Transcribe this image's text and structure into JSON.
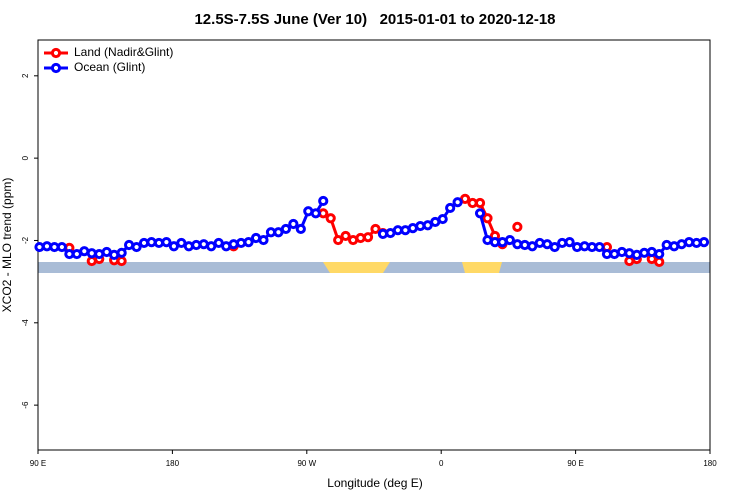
{
  "chart_data": {
    "type": "line",
    "title": "12.5S-7.5S June (Ver 10)   2015-01-01 to 2020-12-18",
    "xlabel": "Longitude (deg E)",
    "ylabel": "XCO2 - MLO trend (ppm)",
    "xlim": [
      90,
      540
    ],
    "ylim": [
      -7.09,
      2.87
    ],
    "xticks": [
      {
        "value": 90,
        "label": "90 E"
      },
      180,
      {
        "value": 270,
        "label": "90 W"
      },
      {
        "value": 360,
        "label": "0"
      },
      {
        "value": 450,
        "label": "90 E"
      },
      {
        "value": 540,
        "label": "180"
      }
    ],
    "yticks": [
      2,
      0,
      -2,
      -4,
      -6
    ],
    "legend": "top-left",
    "x": [
      91,
      96,
      101,
      106,
      111,
      116,
      121,
      126,
      131,
      136,
      141,
      146,
      151,
      156,
      161,
      166,
      171,
      176,
      181,
      186,
      191,
      196,
      201,
      206,
      211,
      216,
      221,
      226,
      231,
      236,
      241,
      246,
      251,
      256,
      261,
      266,
      271,
      276,
      281,
      286,
      291,
      296,
      301,
      306,
      311,
      316,
      321,
      326,
      331,
      336,
      341,
      346,
      351,
      356,
      361,
      366,
      371,
      376,
      381,
      386,
      391,
      396,
      401,
      406,
      411,
      416,
      421,
      426,
      431,
      436,
      441,
      446,
      451,
      456,
      461,
      466,
      471,
      476,
      481,
      486,
      491,
      496,
      501,
      506,
      511,
      516,
      521,
      526,
      531,
      536
    ],
    "series": [
      {
        "name": "Land (Nadir&Glint)",
        "color": "#ff0000",
        "values": [
          null,
          null,
          null,
          null,
          -2.18,
          null,
          null,
          -2.5,
          -2.45,
          null,
          -2.48,
          -2.5,
          null,
          null,
          null,
          null,
          null,
          null,
          null,
          null,
          null,
          null,
          null,
          null,
          null,
          null,
          -2.14,
          null,
          null,
          null,
          null,
          null,
          null,
          null,
          null,
          null,
          null,
          null,
          -1.34,
          -1.46,
          -1.99,
          -1.89,
          -1.99,
          -1.94,
          -1.92,
          -1.72,
          -1.82,
          null,
          null,
          null,
          null,
          null,
          null,
          null,
          null,
          null,
          null,
          -0.99,
          -1.09,
          -1.09,
          -1.46,
          -1.89,
          -2.09,
          null,
          -1.67,
          null,
          null,
          null,
          null,
          null,
          null,
          null,
          null,
          null,
          null,
          null,
          -2.16,
          null,
          null,
          -2.5,
          -2.45,
          null,
          -2.45,
          -2.52,
          null,
          null,
          null,
          null,
          null,
          null
        ]
      },
      {
        "name": "Ocean (Glint)",
        "color": "#0000ff",
        "values": [
          -2.16,
          -2.14,
          -2.16,
          -2.16,
          -2.33,
          -2.33,
          -2.26,
          -2.31,
          -2.33,
          -2.28,
          -2.35,
          -2.3,
          -2.11,
          -2.16,
          -2.06,
          -2.04,
          -2.06,
          -2.04,
          -2.14,
          -2.06,
          -2.14,
          -2.11,
          -2.09,
          -2.14,
          -2.06,
          -2.14,
          -2.09,
          -2.06,
          -2.04,
          -1.94,
          -1.99,
          -1.8,
          -1.8,
          -1.72,
          -1.6,
          -1.72,
          -1.29,
          -1.34,
          -1.04,
          null,
          null,
          null,
          null,
          null,
          null,
          null,
          -1.84,
          -1.82,
          -1.75,
          -1.75,
          -1.7,
          -1.65,
          -1.63,
          -1.55,
          -1.48,
          -1.21,
          -1.07,
          null,
          null,
          -1.34,
          -1.99,
          -2.04,
          -2.04,
          -1.99,
          -2.09,
          -2.11,
          -2.14,
          -2.06,
          -2.09,
          -2.16,
          -2.06,
          -2.04,
          -2.16,
          -2.14,
          -2.16,
          -2.16,
          -2.33,
          -2.33,
          -2.28,
          -2.31,
          -2.35,
          -2.3,
          -2.28,
          -2.33,
          -2.11,
          -2.14,
          -2.09,
          -2.04,
          -2.06,
          -2.04
        ]
      }
    ]
  }
}
